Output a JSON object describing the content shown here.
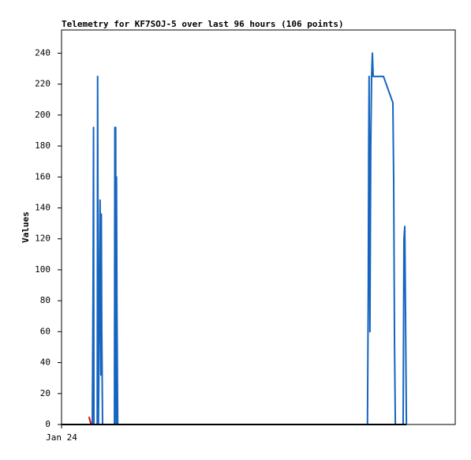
{
  "chart_data": {
    "type": "line",
    "title": "Telemetry for KF7SOJ-5 over last 96 hours (106 points)",
    "y_label": "Values",
    "xlim": [
      0,
      96
    ],
    "xticks": [
      {
        "value": 0,
        "label": "Jan 24"
      }
    ],
    "ylim": [
      0,
      255
    ],
    "yticks": [
      0,
      20,
      40,
      60,
      80,
      100,
      120,
      140,
      160,
      180,
      200,
      220,
      240
    ],
    "series": [
      {
        "color": "#1565c0",
        "x": [
          7.5,
          7.7,
          7.8,
          7.9,
          8.7,
          8.8,
          8.9,
          9.0,
          9.2,
          9.4,
          9.6,
          9.7,
          9.8,
          10.0,
          12.9,
          13.0,
          13.2,
          13.3,
          13.4,
          13.5,
          13.7,
          74.6,
          74.8,
          74.9,
          75.0,
          75.2,
          75.4,
          75.6,
          75.8,
          76.0,
          78.5,
          80.8,
          81.0,
          81.2,
          81.4,
          83.3,
          83.5,
          83.7,
          83.9,
          84.1
        ],
        "values": [
          0,
          97,
          192,
          0,
          0,
          225,
          112,
          0,
          65,
          145,
          32,
          136,
          65,
          0,
          0,
          192,
          192,
          0,
          160,
          80,
          0,
          0,
          88,
          177,
          225,
          60,
          180,
          224,
          240,
          225,
          225,
          208,
          156,
          52,
          0,
          0,
          120,
          128,
          64,
          0
        ]
      },
      {
        "color": "#e00000",
        "x": [
          6.7,
          7.2
        ],
        "values": [
          5,
          0
        ]
      },
      {
        "color": "#000000",
        "x": [
          0,
          84.1
        ],
        "values": [
          0,
          0
        ]
      }
    ]
  }
}
